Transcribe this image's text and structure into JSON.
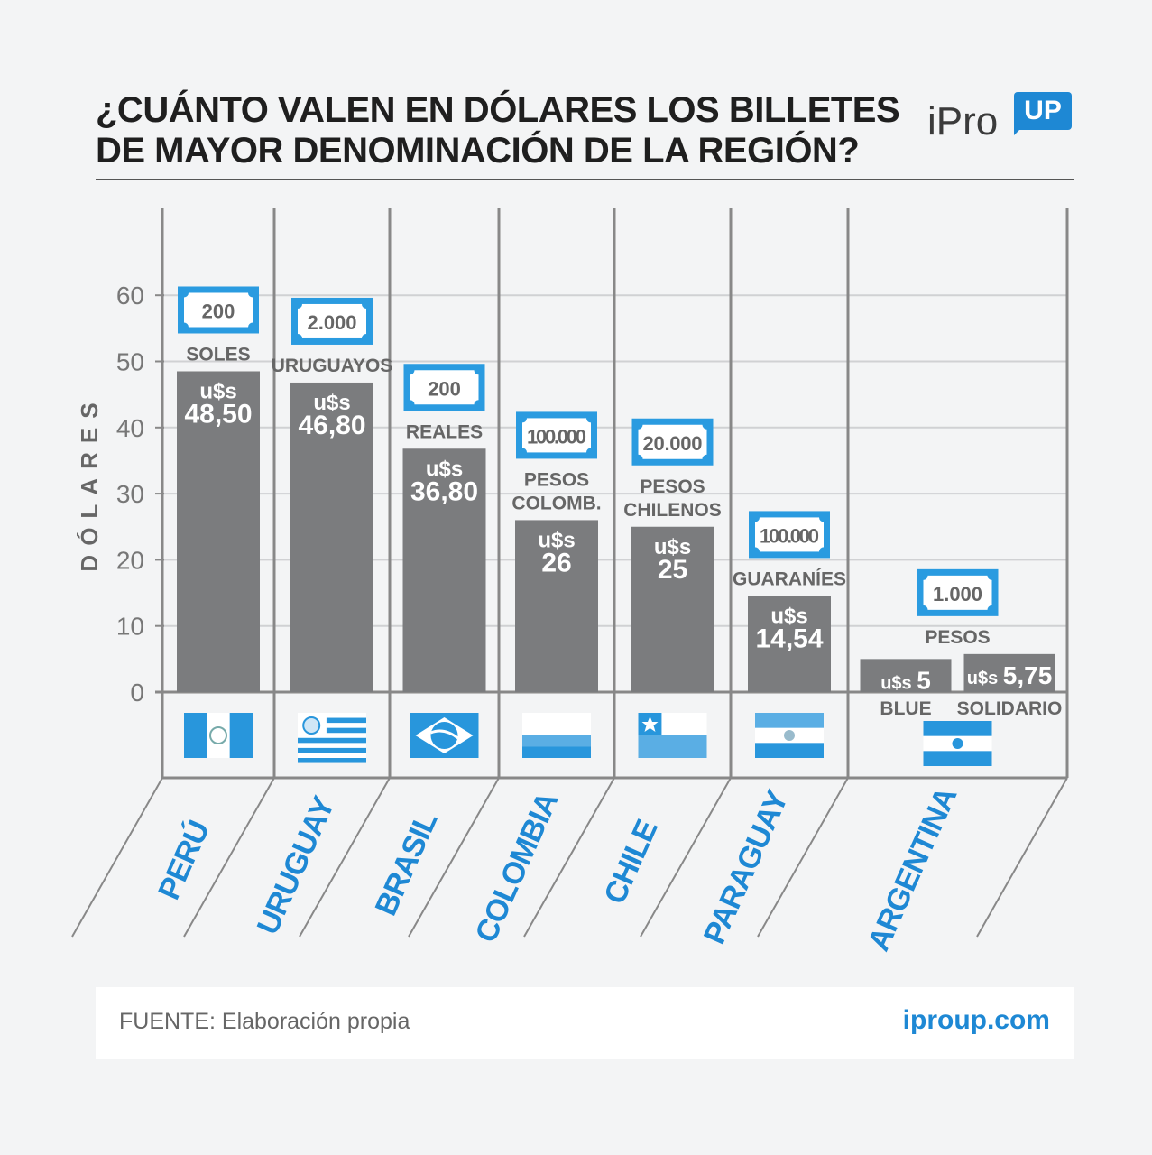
{
  "title_line1": "¿CUÁNTO VALEN EN DÓLARES LOS BILLETES",
  "title_line2": "DE MAYOR DENOMINACIÓN DE LA REGIÓN?",
  "logo": {
    "text": "iPro",
    "badge": "UP"
  },
  "footer": {
    "source": "FUENTE: Elaboración propia",
    "url": "iproup.com"
  },
  "colors": {
    "bar": "#7b7c7e",
    "accent": "#1e88d4",
    "bill_border": "#2a9be0",
    "grid": "#d0d1d3",
    "axis": "#777777"
  },
  "chart_data": {
    "type": "bar",
    "title": "¿CUÁNTO VALEN EN DÓLARES LOS BILLETES DE MAYOR DENOMINACIÓN DE LA REGIÓN?",
    "ylabel": "DÓLARES",
    "ylim": [
      0,
      70
    ],
    "yticks": [
      0,
      10,
      20,
      30,
      40,
      50,
      60
    ],
    "grid": true,
    "value_prefix": "u$s",
    "countries": [
      {
        "name": "PERÚ",
        "bars": [
          {
            "value": 48.5,
            "value_label": "48,50"
          }
        ],
        "bill": "200",
        "currency": [
          "SOLES"
        ],
        "flag": "peru"
      },
      {
        "name": "URUGUAY",
        "bars": [
          {
            "value": 46.8,
            "value_label": "46,80"
          }
        ],
        "bill": "2.000",
        "currency": [
          "URUGUAYOS"
        ],
        "flag": "uruguay"
      },
      {
        "name": "BRASIL",
        "bars": [
          {
            "value": 36.8,
            "value_label": "36,80"
          }
        ],
        "bill": "200",
        "currency": [
          "REALES"
        ],
        "flag": "brazil"
      },
      {
        "name": "COLOMBIA",
        "bars": [
          {
            "value": 26,
            "value_label": "26"
          }
        ],
        "bill": "100.000",
        "currency": [
          "PESOS",
          "COLOMB."
        ],
        "flag": "colombia"
      },
      {
        "name": "CHILE",
        "bars": [
          {
            "value": 25,
            "value_label": "25"
          }
        ],
        "bill": "20.000",
        "currency": [
          "PESOS",
          "CHILENOS"
        ],
        "flag": "chile"
      },
      {
        "name": "PARAGUAY",
        "bars": [
          {
            "value": 14.54,
            "value_label": "14,54"
          }
        ],
        "bill": "100.000",
        "currency": [
          "GUARANÍES"
        ],
        "flag": "paraguay"
      },
      {
        "name": "ARGENTINA",
        "bars": [
          {
            "value": 5,
            "value_label": "5",
            "sublabel": "BLUE"
          },
          {
            "value": 5.75,
            "value_label": "5,75",
            "sublabel": "SOLIDARIO"
          }
        ],
        "bill": "1.000",
        "currency": [
          "PESOS"
        ],
        "flag": "argentina"
      }
    ]
  }
}
